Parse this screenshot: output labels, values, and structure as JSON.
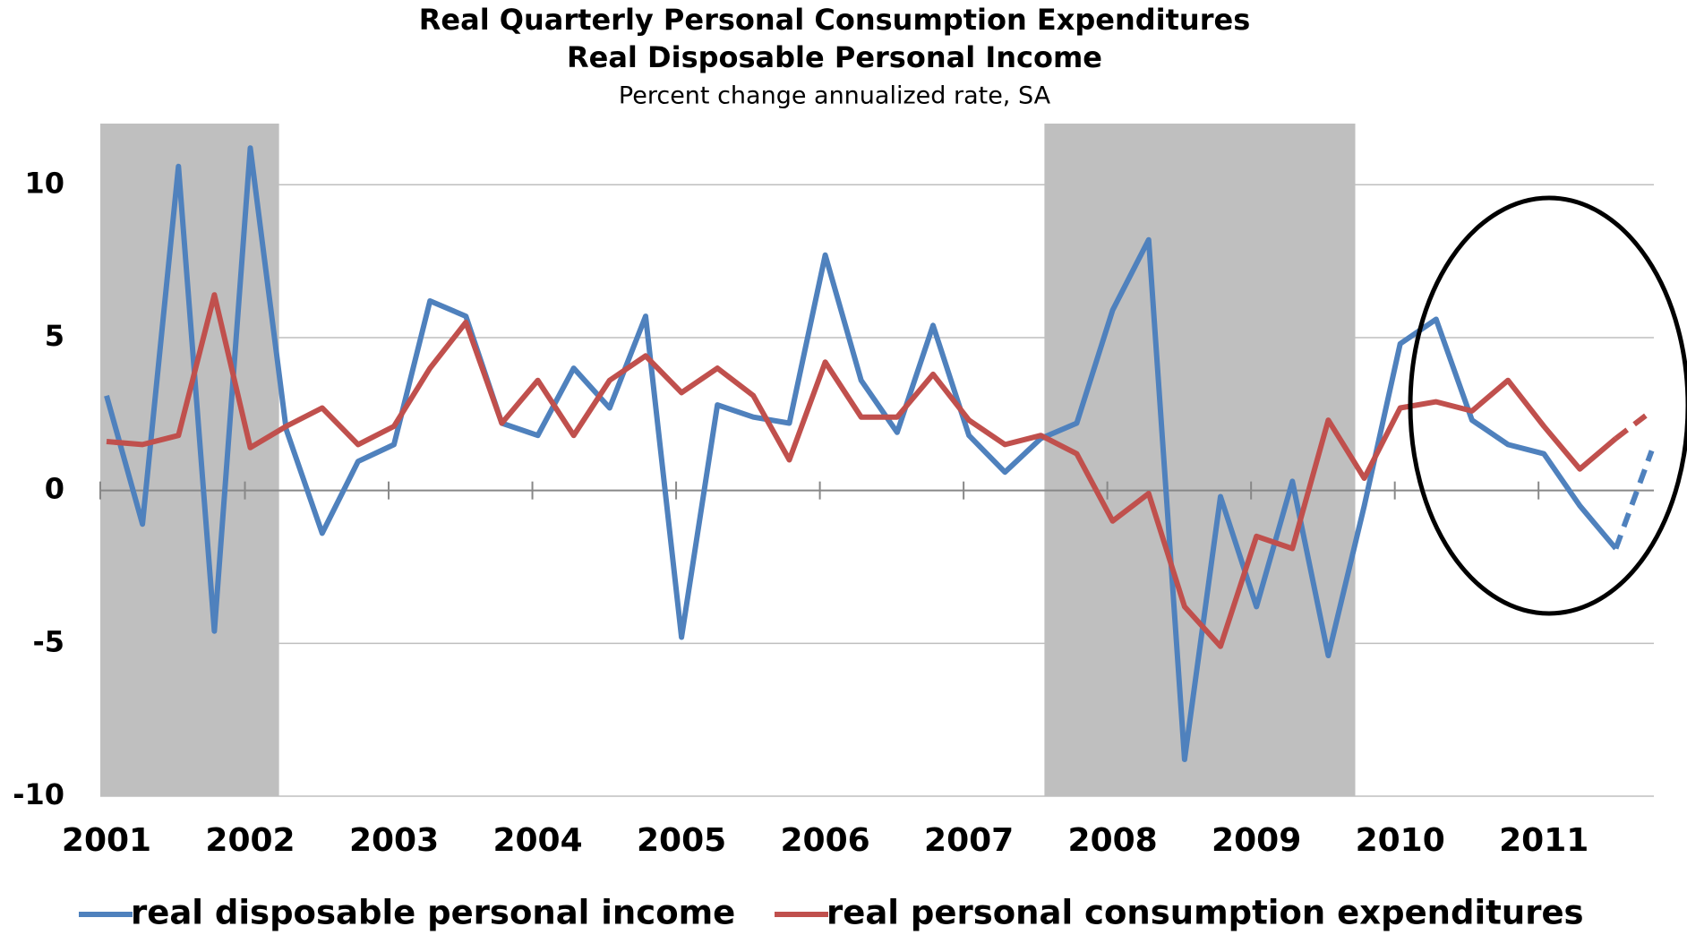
{
  "chart_data": {
    "type": "line",
    "title": "Real Quarterly Personal Consumption Expenditures",
    "title2": "Real Disposable Personal Income",
    "subtitle": "Percent change annualized rate, SA",
    "categories": [
      "2001",
      null,
      null,
      null,
      "2002",
      null,
      null,
      null,
      "2003",
      null,
      null,
      null,
      "2004",
      null,
      null,
      null,
      "2005",
      null,
      null,
      null,
      "2006",
      null,
      null,
      null,
      "2007",
      null,
      null,
      null,
      "2008",
      null,
      null,
      null,
      "2009",
      null,
      null,
      null,
      "2010",
      null,
      null,
      null,
      "2011",
      null,
      null,
      null
    ],
    "ylim": [
      -10,
      12
    ],
    "yticks": [
      -10,
      -5,
      0,
      5,
      10
    ],
    "grid": true,
    "recessions": [
      [
        -0.2,
        4.8
      ],
      [
        26.1,
        34.75
      ]
    ],
    "legend": "bottom",
    "series": [
      {
        "name": "real disposable personal income",
        "color": "#4f81bd",
        "dashed_from_index": 42,
        "values": [
          3.1,
          -1.1,
          10.6,
          -4.6,
          11.2,
          2.0,
          -1.4,
          0.95,
          1.5,
          6.2,
          5.7,
          2.2,
          1.8,
          4.0,
          2.7,
          5.7,
          -4.8,
          2.8,
          2.4,
          2.2,
          7.7,
          3.6,
          1.9,
          5.4,
          1.8,
          0.6,
          1.7,
          2.2,
          5.9,
          8.2,
          -8.8,
          -0.2,
          -3.8,
          0.3,
          -5.4,
          -0.5,
          4.8,
          5.6,
          2.3,
          1.5,
          1.2,
          -0.5,
          -1.9,
          1.3
        ]
      },
      {
        "name": "real personal consumption expenditures",
        "color": "#c0504d",
        "dashed_from_index": 42,
        "values": [
          1.6,
          1.5,
          1.8,
          6.4,
          1.4,
          2.1,
          2.7,
          1.5,
          2.1,
          4.0,
          5.5,
          2.2,
          3.6,
          1.8,
          3.6,
          4.4,
          3.2,
          4.0,
          3.1,
          1.0,
          4.2,
          2.4,
          2.4,
          3.8,
          2.3,
          1.5,
          1.8,
          1.2,
          -1.0,
          -0.1,
          -3.8,
          -5.1,
          -1.5,
          -1.9,
          2.3,
          0.4,
          2.7,
          2.9,
          2.6,
          3.6,
          2.1,
          0.7,
          1.7,
          2.6
        ]
      }
    ]
  }
}
